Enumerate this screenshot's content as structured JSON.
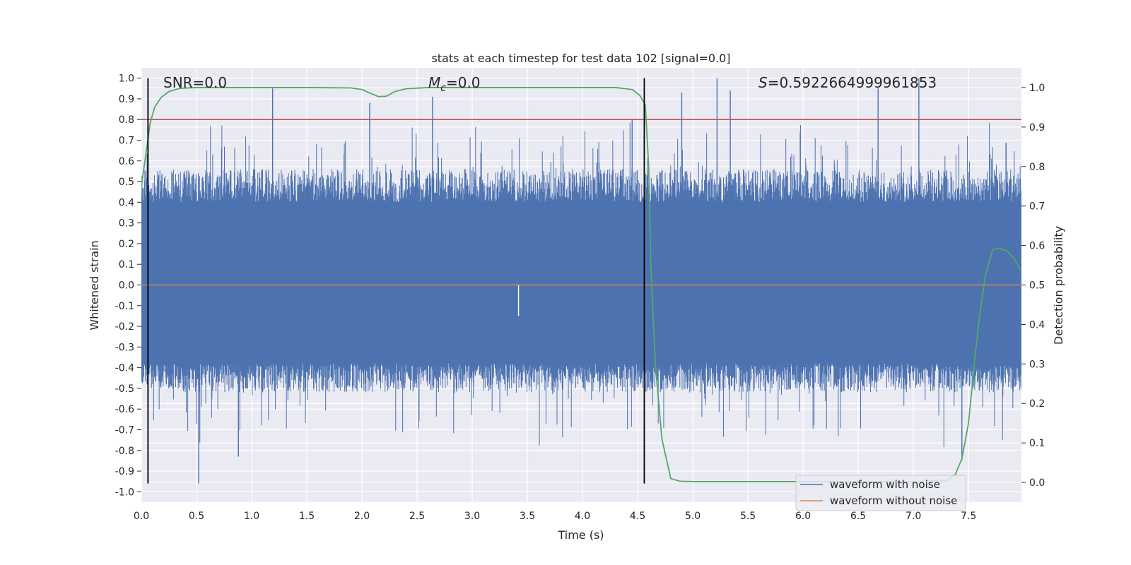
{
  "chart_data": {
    "type": "line",
    "title": "stats at each timestep for test data 102 [signal=0.0]",
    "xlabel": "Time (s)",
    "ylabel": "Whitened strain",
    "ylabel_right": "Detection probability",
    "xlim": [
      0.0,
      7.98
    ],
    "ylim": [
      -1.05,
      1.05
    ],
    "ylim_right": [
      -0.05,
      1.05
    ],
    "xticks": [
      0.0,
      0.5,
      1.0,
      1.5,
      2.0,
      2.5,
      3.0,
      3.5,
      4.0,
      4.5,
      5.0,
      5.5,
      6.0,
      6.5,
      7.0,
      7.5
    ],
    "xtick_labels": [
      "0.0",
      "0.5",
      "1.0",
      "1.5",
      "2.0",
      "2.5",
      "3.0",
      "3.5",
      "4.0",
      "4.5",
      "5.0",
      "5.5",
      "6.0",
      "6.5",
      "7.0",
      "7.5"
    ],
    "yticks": [
      1.0,
      0.9,
      0.8,
      0.7,
      0.6,
      0.5,
      0.4,
      0.3,
      0.2,
      0.1,
      0.0,
      -0.1,
      -0.2,
      -0.3,
      -0.4,
      -0.5,
      -0.6,
      -0.7,
      -0.8,
      -0.9,
      -1.0
    ],
    "ytick_labels": [
      "1.0",
      "0.9",
      "0.8",
      "0.7",
      "0.6",
      "0.5",
      "0.4",
      "0.3",
      "0.2",
      "0.1",
      "0.0",
      "-0.1",
      "-0.2",
      "-0.3",
      "-0.4",
      "-0.5",
      "-0.6",
      "-0.7",
      "-0.8",
      "-0.9",
      "-1.0"
    ],
    "yticks_right": [
      1.0,
      0.9,
      0.8,
      0.7,
      0.6,
      0.5,
      0.4,
      0.3,
      0.2,
      0.1,
      0.0
    ],
    "ytick_labels_right": [
      "1.0",
      "0.9",
      "0.8",
      "0.7",
      "0.6",
      "0.5",
      "0.4",
      "0.3",
      "0.2",
      "0.1",
      "0.0"
    ],
    "annotations": {
      "snr": "SNR=0.0",
      "mc_symbol": "M",
      "mc_sub": "c",
      "mc_value": "=0.0",
      "s_symbol": "S",
      "s_value": "=0.5922664999961853"
    },
    "vertical_lines_x": [
      0.06,
      4.56
    ],
    "threshold_y": 0.8,
    "series": [
      {
        "name": "waveform with noise",
        "color": "#4c72b0",
        "axis": "left",
        "description": "dense noise trace; spike extremes approx +1.0 / -0.96",
        "peaks": [
          [
            0.52,
            -0.96
          ],
          [
            0.88,
            -0.83
          ],
          [
            1.19,
            0.95
          ],
          [
            2.07,
            0.88
          ],
          [
            2.64,
            0.91
          ],
          [
            3.42,
            -0.15
          ],
          [
            4.45,
            0.8
          ],
          [
            4.9,
            0.93
          ],
          [
            5.22,
            1.0
          ],
          [
            5.34,
            0.94
          ],
          [
            6.68,
            0.95
          ],
          [
            7.05,
            1.0
          ],
          [
            7.44,
            -0.85
          ]
        ]
      },
      {
        "name": "waveform without noise",
        "color": "#dd8452",
        "axis": "left",
        "values": "flat at 0.0"
      },
      {
        "name": "detection probability",
        "color": "#55a868",
        "axis": "right",
        "x": [
          0.0,
          0.05,
          0.08,
          0.12,
          0.18,
          0.25,
          0.35,
          0.5,
          1.0,
          1.5,
          1.9,
          2.0,
          2.08,
          2.15,
          2.22,
          2.3,
          2.4,
          2.6,
          3.0,
          3.5,
          4.0,
          4.3,
          4.45,
          4.52,
          4.57,
          4.6,
          4.62,
          4.66,
          4.72,
          4.8,
          4.88,
          5.0,
          6.0,
          7.0,
          7.3,
          7.38,
          7.44,
          7.5,
          7.56,
          7.6,
          7.65,
          7.72,
          7.78,
          7.85,
          7.92,
          7.97
        ],
        "y": [
          0.75,
          0.85,
          0.91,
          0.95,
          0.975,
          0.99,
          0.998,
          1.0,
          1.0,
          1.0,
          0.999,
          0.995,
          0.985,
          0.977,
          0.978,
          0.99,
          0.997,
          1.0,
          1.0,
          1.0,
          1.0,
          1.0,
          0.995,
          0.98,
          0.955,
          0.8,
          0.55,
          0.3,
          0.11,
          0.01,
          0.003,
          0.002,
          0.002,
          0.002,
          0.005,
          0.02,
          0.06,
          0.15,
          0.32,
          0.42,
          0.52,
          0.59,
          0.592,
          0.586,
          0.565,
          0.538
        ]
      },
      {
        "name": "detection threshold",
        "color": "#c44e52",
        "axis": "left",
        "values": "constant at 0.8"
      }
    ],
    "legend": {
      "position": "bottom-right",
      "entries": [
        {
          "label": "waveform with noise",
          "color": "#4c72b0"
        },
        {
          "label": "waveform without noise",
          "color": "#dd8452"
        }
      ]
    },
    "grid": true
  }
}
